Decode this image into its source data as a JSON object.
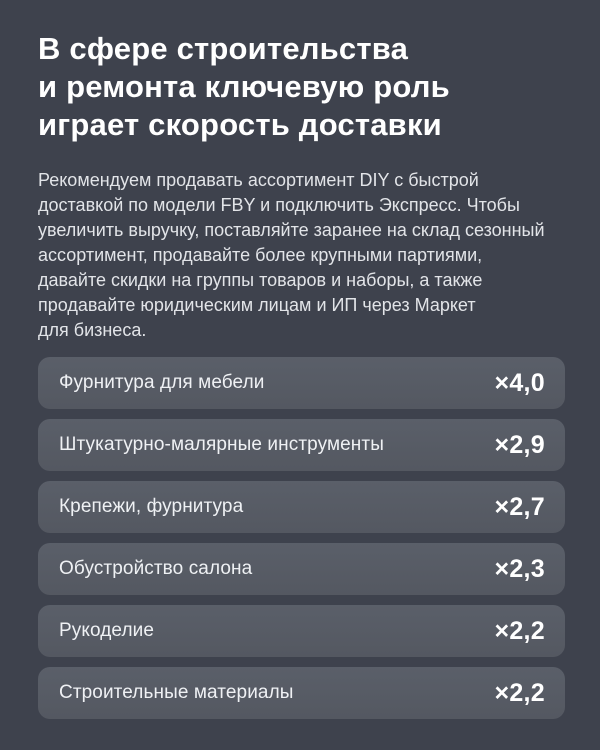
{
  "slide": {
    "title": "В сфере строительства\nи ремонта ключевую роль\nиграет скорость доставки",
    "description": "Рекомендуем продавать ассортимент DIY с быстрой\nдоставкой по модели FBY и подключить Экспресс. Чтобы\nувеличить выручку, поставляйте заранее на склад сезонный\nассортимент, продавайте более крупными партиями,\nдавайте скидки на группы товаров и наборы, а также\nпродавайте юридическим лицам и ИП через Маркет\nдля бизнеса."
  },
  "rows": [
    {
      "label": "Фурнитура для мебели",
      "value": "×4,0"
    },
    {
      "label": "Штукатурно-малярные инструменты",
      "value": "×2,9"
    },
    {
      "label": "Крепежи, фурнитура",
      "value": "×2,7"
    },
    {
      "label": "Обустройство салона",
      "value": "×2,3"
    },
    {
      "label": "Рукоделие",
      "value": "×2,2"
    },
    {
      "label": "Строительные материалы",
      "value": "×2,2"
    }
  ],
  "colors": {
    "background": "#3E424D",
    "card": "#565B65",
    "title_text": "#FFFFFF",
    "body_text": "#E2E4E8",
    "label_text": "#EFF1F4",
    "value_text": "#FFFFFF"
  },
  "chart_data": {
    "type": "table",
    "title": "В сфере строительства и ремонта ключевую роль играет скорость доставки",
    "categories": [
      "Фурнитура для мебели",
      "Штукатурно-малярные инструменты",
      "Крепежи, фурнитура",
      "Обустройство салона",
      "Рукоделие",
      "Строительные материалы"
    ],
    "values": [
      4.0,
      2.9,
      2.7,
      2.3,
      2.2,
      2.2
    ],
    "value_labels": [
      "×4,0",
      "×2,9",
      "×2,7",
      "×2,3",
      "×2,2",
      "×2,2"
    ],
    "value_format": "growth multiplier (× factor, comma decimal separator)",
    "legend_position": "none",
    "grid": false
  }
}
